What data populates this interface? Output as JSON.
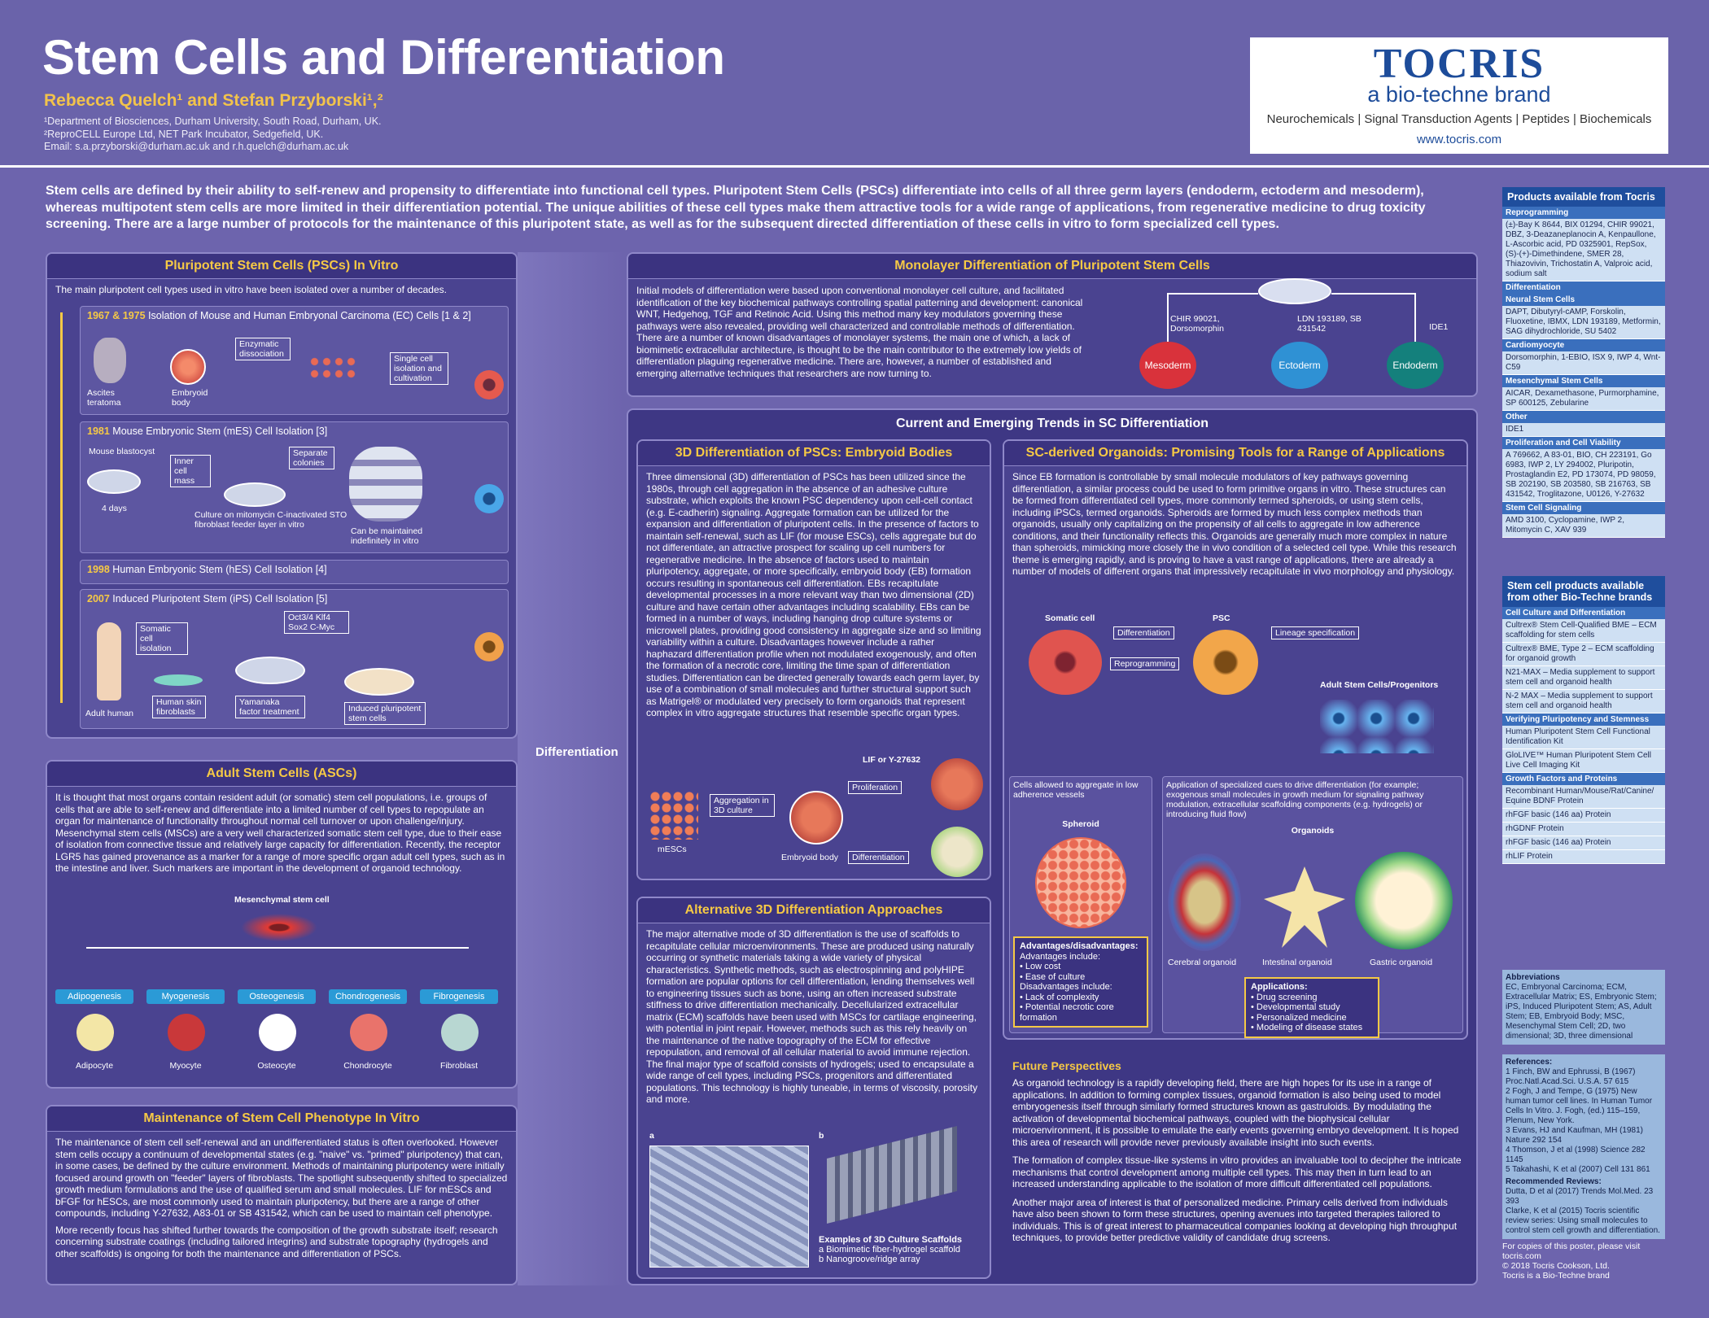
{
  "header": {
    "title": "Stem Cells and Differentiation",
    "authors": "Rebecca Quelch¹ and Stefan Przyborski¹,²",
    "aff1": "¹Department of Biosciences, Durham University, South Road, Durham, UK.",
    "aff2": "²ReproCELL Europe Ltd, NET Park Incubator, Sedgefield, UK.",
    "aff3": "Email: s.a.przyborski@durham.ac.uk and r.h.quelch@durham.ac.uk"
  },
  "logo": {
    "name": "TOCRIS",
    "brand": "a bio-techne brand",
    "tagline": "Neurochemicals | Signal Transduction Agents | Peptides | Biochemicals",
    "url": "www.tocris.com"
  },
  "intro": "Stem cells are defined by their ability to self-renew and propensity to differentiate into functional cell types. Pluripotent Stem Cells (PSCs) differentiate into cells of all three germ layers (endoderm, ectoderm and mesoderm), whereas multipotent stem cells are more limited in their differentiation potential. The unique abilities of these cell types make them attractive tools for a wide range of applications, from regenerative medicine to drug toxicity screening. There are a large number of protocols for the maintenance of this pluripotent state, as well as for the subsequent directed differentiation of these cells in vitro to form specialized cell types.",
  "psc": {
    "title": "Pluripotent Stem Cells (PSCs) In Vitro",
    "lead": "The main pluripotent cell types used in vitro have been isolated over a number of decades.",
    "e1": {
      "year": "1967 & 1975",
      "text": "Isolation of Mouse and Human Embryonal Carcinoma (EC) Cells [1 & 2]",
      "l1": "Ascites teratoma",
      "l2": "Embryoid body",
      "l3": "Enzymatic dissociation",
      "l4": "Single cell isolation and cultivation"
    },
    "e2": {
      "year": "1981",
      "text": "Mouse Embryonic Stem (mES) Cell Isolation [3]",
      "l1": "Mouse blastocyst",
      "l2": "4 days",
      "l3": "Inner cell mass",
      "l4": "Culture on mitomycin C-inactivated STO fibroblast feeder layer in vitro",
      "l5": "Separate colonies",
      "l6": "Can be maintained indefinitely in vitro"
    },
    "e3": {
      "year": "1998",
      "text": "Human Embryonic Stem (hES) Cell Isolation [4]"
    },
    "e4": {
      "year": "2007",
      "text": "Induced Pluripotent Stem (iPS) Cell Isolation [5]",
      "l1": "Oct3/4 Klf4",
      "l2": "Sox2 C-Myc",
      "l3": "Somatic cell isolation",
      "l4": "Adult human",
      "l5": "Human skin fibroblasts",
      "l6": "Yamanaka factor treatment",
      "l7": "Induced pluripotent stem cells"
    }
  },
  "diff_label": "Differentiation",
  "asc": {
    "title": "Adult Stem Cells (ASCs)",
    "text": "It is thought that most organs contain resident adult (or somatic) stem cell populations, i.e. groups of cells that are able to self-renew and differentiate into a limited number of cell types to repopulate an organ for maintenance of functionality throughout normal cell turnover or upon challenge/injury. Mesenchymal stem cells (MSCs) are a very well characterized somatic stem cell type, due to their ease of isolation from connective tissue and relatively large capacity for differentiation. Recently, the receptor LGR5 has gained provenance as a marker for a range of more specific organ adult cell types, such as in the intestine and liver. Such markers are important in the development of organoid technology.",
    "msc": "Mesenchymal stem cell",
    "tags": [
      "Adipogenesis",
      "Myogenesis",
      "Osteogenesis",
      "Chondrogenesis",
      "Fibrogenesis"
    ],
    "cells": [
      "Adipocyte",
      "Myocyte",
      "Osteocyte",
      "Chondrocyte",
      "Fibroblast"
    ]
  },
  "maint": {
    "title": "Maintenance of Stem Cell Phenotype In Vitro",
    "p1": "The maintenance of stem cell self-renewal and an undifferentiated status is often overlooked. However stem cells occupy a continuum of developmental states (e.g. \"naive\" vs. \"primed\" pluripotency) that can, in some cases, be defined by the culture environment. Methods of maintaining pluripotency were initially focused around growth on \"feeder\" layers of fibroblasts. The spotlight subsequently shifted to specialized growth medium formulations and the use of qualified serum and small molecules. LIF for mESCs and bFGF for hESCs, are most commonly used to maintain pluripotency, but there are a range of other compounds, including Y-27632, A83-01 or SB 431542, which can be used to maintain cell phenotype.",
    "p2": "More recently focus has shifted further towards the composition of the growth substrate itself; research concerning substrate coatings (including tailored integrins) and substrate topography (hydrogels and other scaffolds) is ongoing for both the maintenance and differentiation of PSCs."
  },
  "mono": {
    "title": "Monolayer Differentiation of Pluripotent Stem Cells",
    "text": "Initial models of differentiation were based upon conventional monolayer cell culture, and facilitated identification of the key biochemical pathways controlling spatial patterning and development: canonical WNT, Hedgehog, TGF and Retinoic Acid. Using this method many key modulators governing these pathways were also revealed, providing well characterized and controllable methods of differentiation. There are a number of known disadvantages of monolayer systems, the main one of which, a lack of biomimetic extracellular architecture, is thought to be the main contributor to the extremely low yields of differentiation plaguing regenerative medicine. There are, however, a number of established and emerging alternative techniques that researchers are now turning to.",
    "c1": "CHIR 99021, Dorsomorphin",
    "c2": "LDN 193189, SB 431542",
    "c3": "IDE1",
    "m": "Mesoderm",
    "ec": "Ectoderm",
    "en": "Endoderm"
  },
  "trends": {
    "title": "Current and Emerging Trends in SC Differentiation"
  },
  "eb": {
    "title": "3D Differentiation of PSCs: Embryoid Bodies",
    "text": "Three dimensional (3D) differentiation of PSCs has been utilized since the 1980s, through cell aggregation in the absence of an adhesive culture substrate, which exploits the known PSC dependency upon cell-cell contact (e.g. E-cadherin) signaling. Aggregate formation can be utilized for the expansion and differentiation of pluripotent cells. In the presence of factors to maintain self-renewal, such as LIF (for mouse ESCs), cells aggregate but do not differentiate, an attractive prospect for scaling up cell numbers for regenerative medicine. In the absence of factors used to maintain pluripotency, aggregate, or more specifically, embryoid body (EB) formation occurs resulting in spontaneous cell differentiation. EBs recapitulate developmental processes in a more relevant way than two dimensional (2D) culture and have certain other advantages including scalability. EBs can be formed in a number of ways, including hanging drop culture systems or microwell plates, providing good consistency in aggregate size and so limiting variability within a culture. Disadvantages however include a rather haphazard differentiation profile when not modulated exogenously, and often the formation of a necrotic core, limiting the time span of differentiation studies. Differentiation can be directed generally towards each germ layer, by use of a combination of small molecules and further structural support such as Matrigel® or modulated very precisely to form organoids that represent complex in vitro aggregate structures that resemble specific organ types.",
    "l1": "LIF or Y-27632",
    "l2": "Proliferation",
    "l3": "Aggregation in 3D culture",
    "l4": "mESCs",
    "l5": "Embryoid body",
    "l6": "Differentiation"
  },
  "alt": {
    "title": "Alternative 3D Differentiation Approaches",
    "text": "The major alternative mode of 3D differentiation is the use of scaffolds to recapitulate cellular microenvironments. These are produced using naturally occurring or synthetic materials taking a wide variety of physical characteristics. Synthetic methods, such as electrospinning and polyHIPE formation are popular options for cell differentiation, lending themselves well to engineering tissues such as bone, using an often increased substrate stiffness to drive differentiation mechanically. Decellularized extracellular matrix (ECM) scaffolds have been used with MSCs for cartilage engineering, with potential in joint repair. However, methods such as this rely heavily on the maintenance of the native topography of the ECM for effective repopulation, and removal of all cellular material to avoid immune rejection. The final major type of scaffold consists of hydrogels; used to encapsulate a wide range of cell types, including PSCs, progenitors and differentiated populations. This technology is highly tuneable, in terms of viscosity, porosity and more.",
    "a": "a",
    "b": "b",
    "cap": "Examples of 3D Culture Scaffolds",
    "capa": "a Biomimetic fiber-hydrogel scaffold",
    "capb": "b Nanogroove/ridge array"
  },
  "org": {
    "title": "SC-derived Organoids: Promising Tools for a Range of Applications",
    "text": "Since EB formation is controllable by small molecule modulators of key pathways governing differentiation, a similar process could be used to form primitive organs in vitro. These structures can be formed from differentiated cell types, more commonly termed spheroids, or using stem cells, including iPSCs, termed organoids. Spheroids are formed by much less complex methods than organoids, usually only capitalizing on the propensity of all cells to aggregate in low adherence conditions, and their functionality reflects this. Organoids are generally much more complex in nature than spheroids, mimicking more closely the in vivo condition of a selected cell type. While this research theme is emerging rapidly, and is proving to have a vast range of applications, there are already a number of models of different organs that impressively recapitulate in vivo morphology and physiology.",
    "somatic": "Somatic cell",
    "psc": "PSC",
    "d": "Differentiation",
    "r": "Reprogramming",
    "ls": "Lineage specification",
    "asc": "Adult Stem Cells/Progenitors",
    "lowadh": "Cells allowed to aggregate in low adherence vessels",
    "spec": "Application of specialized cues to drive differentiation (for example; exogenous small molecules in growth medium for signaling pathway modulation, extracellular scaffolding components (e.g. hydrogels) or introducing fluid flow)",
    "spheroid": "Spheroid",
    "organoids": "Organoids",
    "o1": "Cerebral organoid",
    "o2": "Intestinal organoid",
    "o3": "Gastric organoid",
    "adv_h": "Advantages/disadvantages:",
    "adv": [
      "Advantages include:",
      "• Low cost",
      "• Ease of culture",
      "Disadvantages include:",
      "• Lack of complexity",
      "• Potential necrotic core formation"
    ],
    "app_h": "Applications:",
    "app": [
      "• Drug screening",
      "• Developmental study",
      "• Personalized medicine",
      "• Modeling of disease states"
    ]
  },
  "future": {
    "title": "Future Perspectives",
    "p1": "As organoid technology is a rapidly developing field, there are high hopes for its use in a range of applications. In addition to forming complex tissues, organoid formation is also being used to model embryogenesis itself through similarly formed structures known as gastruloids. By modulating the activation of developmental biochemical pathways, coupled with the biophysical cellular microenvironment, it is possible to emulate the early events governing embryo development. It is hoped this area of research will provide never previously available insight into such events.",
    "p2": "The formation of complex tissue-like systems in vitro provides an invaluable tool to decipher the intricate mechanisms that control development among multiple cell types. This may then in turn lead to an increased understanding applicable to the isolation of more difficult differentiated cell populations.",
    "p3": "Another major area of interest is that of personalized medicine. Primary cells derived from individuals have also been shown to form these structures, opening avenues into targeted therapies tailored to individuals. This is of great interest to pharmaceutical companies looking at developing high throughput techniques, to provide better predictive validity of candidate drug screens."
  },
  "sidebar": {
    "h1": "Products available from Tocris",
    "groups1": [
      {
        "c": "Reprogramming",
        "t": "(±)-Bay K 8644, BIX 01294, CHIR 99021, DBZ, 3-Deazaneplanocin A, Kenpaullone, L-Ascorbic acid, PD 0325901, RepSox, (S)-(+)-Dimethindene, SMER 28, Thiazovivin, Trichostatin A, Valproic acid, sodium salt"
      },
      {
        "c": "Differentiation",
        "t": ""
      },
      {
        "c": "Neural Stem Cells",
        "t": "DAPT, Dibutyryl-cAMP, Forskolin, Fluoxetine, IBMX, LDN 193189, Metformin, SAG dihydrochloride, SU 5402"
      },
      {
        "c": "Cardiomyocyte",
        "t": "Dorsomorphin, 1-EBIO, ISX 9, IWP 4, Wnt-C59"
      },
      {
        "c": "Mesenchymal Stem Cells",
        "t": "AICAR, Dexamethasone, Purmorphamine, SP 600125, Zebularine"
      },
      {
        "c": "Other",
        "t": "IDE1"
      },
      {
        "c": "Proliferation and Cell Viability",
        "t": "A 769662, A 83-01, BIO, CH 223191, Go 6983, IWP 2, LY 294002, Pluripotin, Prostaglandin E2, PD 173074, PD 98059, SB 202190, SB 203580, SB 216763, SB 431542, Troglitazone, U0126, Y-27632"
      },
      {
        "c": "Stem Cell Signaling",
        "t": "AMD 3100, Cyclopamine, IWP 2, Mitomycin C, XAV 939"
      }
    ],
    "h2": "Stem cell products available from other Bio-Techne brands",
    "groups2": [
      {
        "c": "Cell Culture and Differentiation",
        "t": [
          "Cultrex® Stem Cell-Qualified BME – ECM scaffolding for stem cells",
          "Cultrex® BME, Type 2 – ECM scaffolding for organoid growth",
          "N21-MAX – Media supplement to support stem cell and organoid health",
          "N-2 MAX – Media supplement to support stem cell and organoid health"
        ]
      },
      {
        "c": "Verifying Pluripotency and Stemness",
        "t": [
          "Human Pluripotent Stem Cell Functional Identification Kit",
          "GloLIVE™ Human Pluripotent Stem Cell Live Cell Imaging Kit"
        ]
      },
      {
        "c": "Growth Factors and Proteins",
        "t": [
          "Recombinant Human/Mouse/Rat/Canine/ Equine BDNF Protein",
          "rhFGF basic (146 aa) Protein",
          "rhGDNF Protein",
          "rhFGF basic (146 aa) Protein",
          "rhLIF Protein"
        ]
      }
    ],
    "abbr_h": "Abbreviations",
    "abbr": "EC, Embryonal Carcinoma; ECM, Extracellular Matrix; ES, Embryonic Stem; iPS, Induced Pluripotent Stem; AS, Adult Stem; EB, Embryoid Body; MSC, Mesenchymal Stem Cell; 2D, two dimensional; 3D, three dimensional",
    "ref_h": "References:",
    "refs": [
      "1  Finch, BW and Ephrussi, B (1967) Proc.Natl.Acad.Sci. U.S.A. 57 615",
      "2  Fogh, J and Tempe, G (1975) New human tumor cell lines. In Human Tumor Cells In Vitro. J. Fogh, (ed.) 115–159, Plenum, New York.",
      "3  Evans, HJ and Kaufman, MH (1981) Nature 292 154",
      "4  Thomson, J et al (1998) Science 282 1145",
      "5  Takahashi, K et al (2007) Cell 131 861"
    ],
    "rev_h": "Recommended Reviews:",
    "revs": [
      "Dutta, D et al (2017) Trends Mol.Med. 23 393",
      "Clarke, K et al (2015) Tocris scientific review series: Using small molecules to control stem cell growth and differentiation."
    ],
    "foot": [
      "For copies of this poster, please visit tocris.com",
      "© 2018 Tocris Cookson, Ltd.",
      "Tocris is a Bio-Techne brand"
    ]
  }
}
